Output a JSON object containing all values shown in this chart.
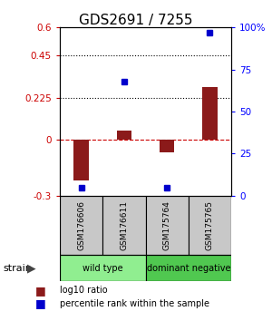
{
  "title": "GDS2691 / 7255",
  "samples": [
    "GSM176606",
    "GSM176611",
    "GSM175764",
    "GSM175765"
  ],
  "log10_ratio": [
    -0.22,
    0.05,
    -0.07,
    0.28
  ],
  "percentile_rank": [
    5,
    68,
    5,
    97
  ],
  "groups": [
    {
      "label": "wild type",
      "samples": [
        0,
        1
      ],
      "color": "#90EE90"
    },
    {
      "label": "dominant negative",
      "samples": [
        2,
        3
      ],
      "color": "#50C850"
    }
  ],
  "bar_color": "#8B1A1A",
  "dot_color": "#0000CC",
  "left_ylim": [
    -0.3,
    0.6
  ],
  "left_yticks": [
    -0.3,
    0,
    0.225,
    0.45,
    0.6
  ],
  "left_yticklabels": [
    "-0.3",
    "0",
    "0.225",
    "0.45",
    "0.6"
  ],
  "right_ylim": [
    0,
    100
  ],
  "right_yticks": [
    0,
    25,
    50,
    75,
    100
  ],
  "right_yticklabels": [
    "0",
    "25",
    "50",
    "75",
    "100%"
  ],
  "hlines": [
    0.225,
    0.45
  ],
  "zero_line": 0,
  "bg_color": "#FFFFFF",
  "title_fontsize": 11,
  "tick_fontsize": 7.5,
  "label_fontsize": 7.5,
  "sample_label_fontsize": 6.5,
  "group_label_fontsize": 7,
  "legend_fontsize": 7
}
